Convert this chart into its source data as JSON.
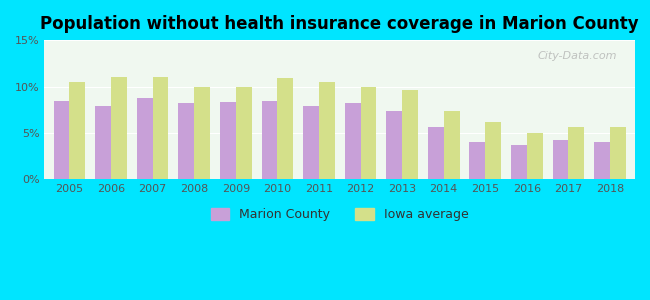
{
  "title": "Population without health insurance coverage in Marion County",
  "years": [
    2005,
    2006,
    2007,
    2008,
    2009,
    2010,
    2011,
    2012,
    2013,
    2014,
    2015,
    2016,
    2017,
    2018
  ],
  "marion_county": [
    8.4,
    7.9,
    8.8,
    8.2,
    8.3,
    8.4,
    7.9,
    8.2,
    7.4,
    5.7,
    4.0,
    3.7,
    4.2,
    4.0
  ],
  "iowa_average": [
    10.5,
    11.0,
    11.0,
    10.0,
    10.0,
    10.9,
    10.5,
    10.0,
    9.6,
    7.4,
    6.2,
    5.0,
    5.6,
    5.7
  ],
  "marion_color": "#c8a0d8",
  "iowa_color": "#d4e08a",
  "background_outer": "#00e5ff",
  "background_inner": "#f0f8f0",
  "ylim": [
    0,
    15
  ],
  "yticks": [
    0,
    5,
    10,
    15
  ],
  "ytick_labels": [
    "0%",
    "5%",
    "10%",
    "15%"
  ],
  "bar_width": 0.38,
  "watermark": "City-Data.com"
}
